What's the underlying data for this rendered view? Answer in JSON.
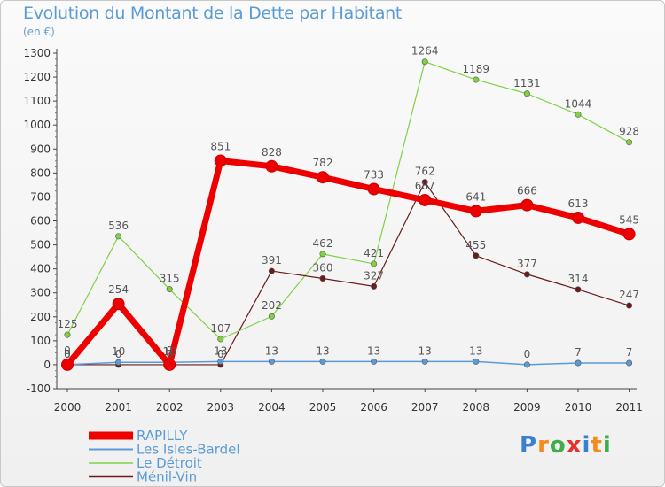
{
  "header": {
    "title": "Evolution du Montant de la Dette par Habitant",
    "subtitle": "(en €)"
  },
  "brand": {
    "letters": [
      "P",
      "r",
      "o",
      "x",
      "i",
      "t",
      "i"
    ],
    "colors": [
      "#3b7fd1",
      "#f28c1e",
      "#3fae49",
      "#e6332a",
      "#3b7fd1",
      "#f28c1e",
      "#3fae49"
    ]
  },
  "chart_data": {
    "type": "line",
    "title": "Evolution du Montant de la Dette par Habitant",
    "ylabel": "(en €)",
    "x": [
      "2000",
      "2001",
      "2002",
      "2003",
      "2004",
      "2005",
      "2006",
      "2007",
      "2008",
      "2009",
      "2010",
      "2011"
    ],
    "ylim": [
      -100,
      1300
    ],
    "yticks": [
      -100,
      0,
      100,
      200,
      300,
      400,
      500,
      600,
      700,
      800,
      900,
      1000,
      1100,
      1200,
      1300
    ],
    "grid": false,
    "legend_position": "bottom-left",
    "series": [
      {
        "name": "RAPILLY",
        "color": "#ee0000",
        "values": [
          0,
          254,
          0,
          851,
          828,
          782,
          733,
          687,
          641,
          666,
          613,
          545
        ],
        "labels": [
          "0",
          "254",
          "0",
          "851",
          "828",
          "782",
          "733",
          "687",
          "641",
          "666",
          "613",
          "545"
        ]
      },
      {
        "name": "Les Isles-Bardel",
        "color": "#5b9bd5",
        "values": [
          0,
          10,
          10,
          13,
          13,
          13,
          13,
          13,
          13,
          0,
          7,
          7
        ],
        "labels": [
          "0",
          "10",
          "10",
          "13",
          "13",
          "13",
          "13",
          "13",
          "13",
          "0",
          "7",
          "7"
        ]
      },
      {
        "name": "Le Détroit",
        "color": "#7ed242",
        "values": [
          125,
          536,
          315,
          107,
          202,
          462,
          421,
          1264,
          1189,
          1131,
          1044,
          928
        ],
        "labels": [
          "125",
          "536",
          "315",
          "107",
          "202",
          "462",
          "421",
          "1264",
          "1189",
          "1131",
          "1044",
          "928"
        ]
      },
      {
        "name": "Ménil-Vin",
        "color": "#6b1b1b",
        "values": [
          0,
          0,
          0,
          0,
          391,
          360,
          327,
          762,
          455,
          377,
          314,
          247
        ],
        "labels": [
          "0",
          "0",
          "0",
          "0",
          "391",
          "360",
          "327",
          "762",
          "455",
          "377",
          "314",
          "247"
        ]
      }
    ]
  }
}
